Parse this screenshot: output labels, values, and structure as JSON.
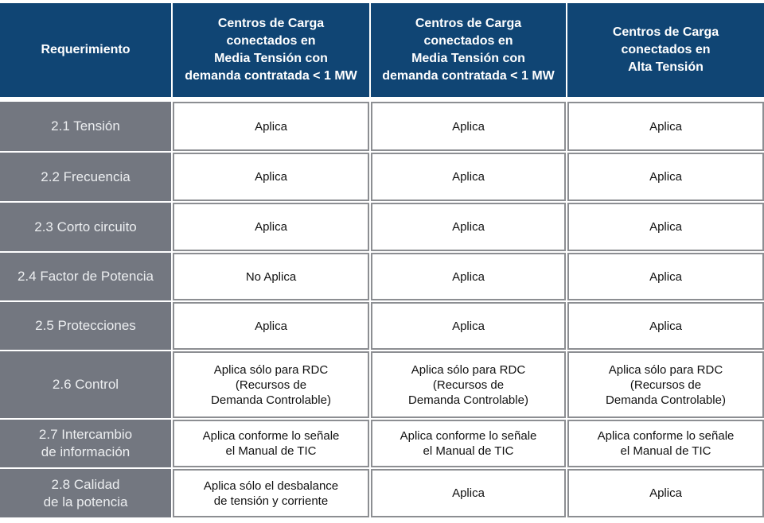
{
  "header": {
    "columns": [
      "Requerimiento",
      "Centros de Carga\nconectados en\nMedia Tensión con\ndemanda contratada < 1 MW",
      "Centros de Carga\nconectados en\nMedia Tensión con\ndemanda contratada < 1 MW",
      "Centros de Carga\nconectados en\nAlta Tensión"
    ]
  },
  "rows": [
    {
      "req": "2.1 Tensión",
      "c1": "Aplica",
      "c2": "Aplica",
      "c3": "Aplica"
    },
    {
      "req": "2.2 Frecuencia",
      "c1": "Aplica",
      "c2": "Aplica",
      "c3": "Aplica"
    },
    {
      "req": "2.3 Corto circuito",
      "c1": "Aplica",
      "c2": "Aplica",
      "c3": "Aplica"
    },
    {
      "req": "2.4 Factor de Potencia",
      "c1": "No Aplica",
      "c2": "Aplica",
      "c3": "Aplica"
    },
    {
      "req": "2.5 Protecciones",
      "c1": "Aplica",
      "c2": "Aplica",
      "c3": "Aplica"
    },
    {
      "req": "2.6 Control",
      "c1": "Aplica sólo para RDC\n(Recursos de\nDemanda Controlable)",
      "c2": "Aplica sólo para RDC\n(Recursos de\nDemanda Controlable)",
      "c3": "Aplica sólo para RDC\n(Recursos de\nDemanda Controlable)"
    },
    {
      "req": "2.7 Intercambio\nde información",
      "c1": "Aplica conforme lo señale\nel Manual de TIC",
      "c2": "Aplica conforme lo señale\nel Manual de TIC",
      "c3": "Aplica conforme lo señale\nel Manual de TIC"
    },
    {
      "req": "2.8 Calidad\nde la potencia",
      "c1": "Aplica sólo el desbalance\nde tensión y corriente",
      "c2": "Aplica",
      "c3": "Aplica"
    }
  ],
  "colors": {
    "header_bg": "#104574",
    "requirement_bg": "#737780",
    "border": "#8c8e92"
  }
}
